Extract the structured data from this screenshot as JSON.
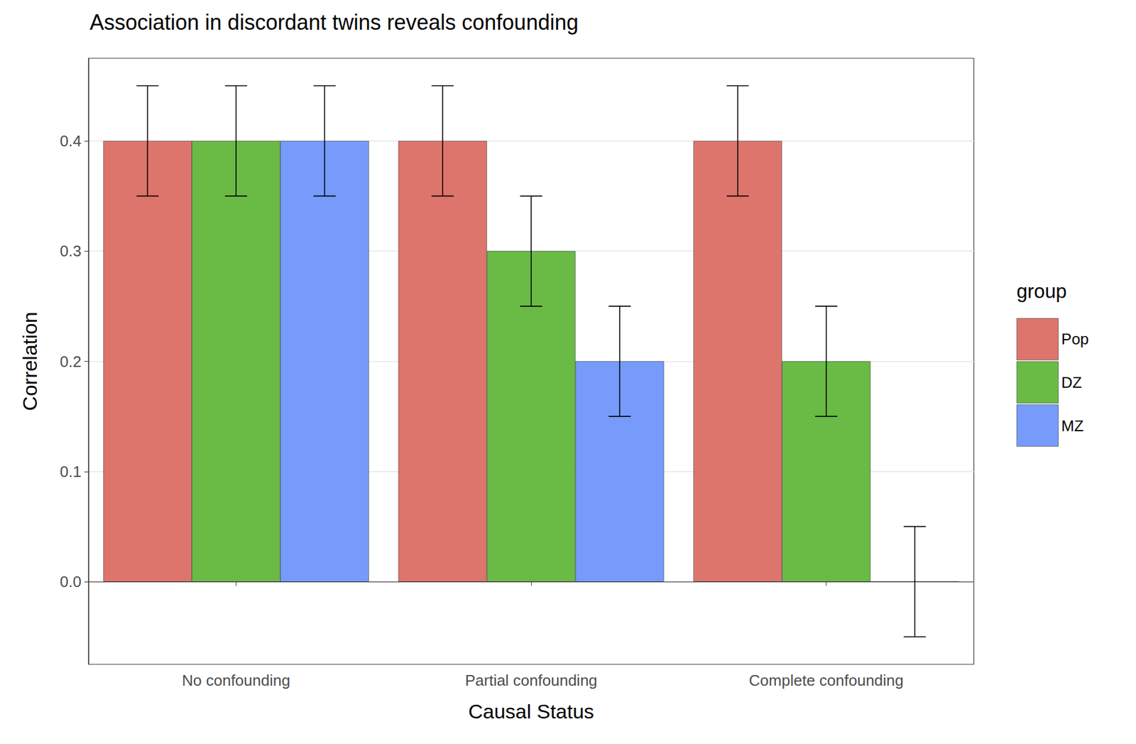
{
  "chart_data": {
    "type": "bar",
    "title": "Association in discordant twins reveals confounding",
    "x_label": "Causal Status",
    "y_label": "Correlation",
    "legend_title": "group",
    "categories": [
      "No confounding",
      "Partial confounding",
      "Complete confounding"
    ],
    "series": [
      {
        "name": "Pop",
        "color": "#DD756D",
        "values": [
          0.4,
          0.4,
          0.4
        ],
        "error": [
          0.05,
          0.05,
          0.05
        ]
      },
      {
        "name": "DZ",
        "color": "#6ABA46",
        "values": [
          0.4,
          0.3,
          0.2
        ],
        "error": [
          0.05,
          0.05,
          0.05
        ]
      },
      {
        "name": "MZ",
        "color": "#769BFA",
        "values": [
          0.4,
          0.2,
          0.0
        ],
        "error": [
          0.05,
          0.05,
          0.05
        ]
      }
    ],
    "ylim": [
      -0.075,
      0.475
    ],
    "yticks": [
      {
        "value": 0,
        "label": "0.0"
      },
      0.1,
      0.2,
      0.3,
      0.4
    ],
    "grid": true,
    "legend": "right"
  }
}
